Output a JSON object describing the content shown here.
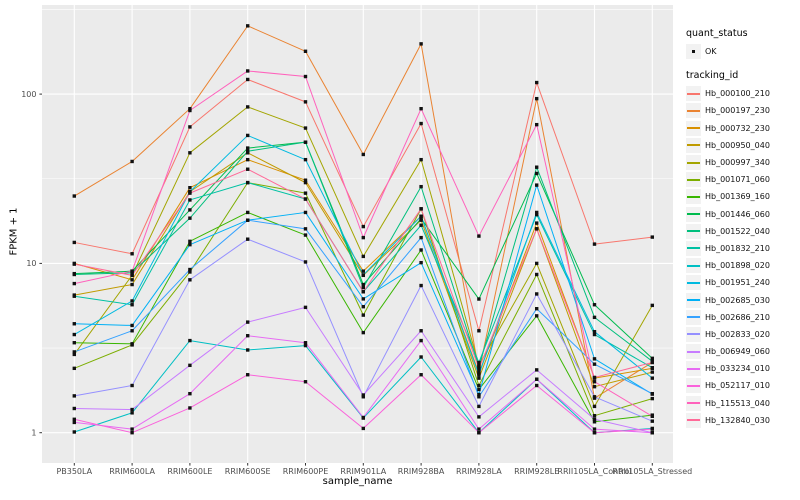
{
  "chart_data": {
    "type": "line",
    "title": "",
    "xlabel": "sample_name",
    "ylabel": "FPKM + 1",
    "y_scale": "log10",
    "ylim": [
      1,
      320
    ],
    "y_ticks": [
      1,
      10,
      100
    ],
    "grid": "white major and minor gridlines on gray panel",
    "legend_position": "right",
    "point_marker": "small black square (quant_status OK)",
    "quant_status": {
      "title": "quant_status",
      "items": [
        "OK"
      ]
    },
    "legend_title": "tracking_id",
    "x_categories": [
      "PB350LA",
      "RRIM600LA",
      "RRIM600LE",
      "RRIM600SE",
      "RRIM600PE",
      "RRIM901LA",
      "RRIM928BA",
      "RRIM928LA",
      "RRIM928LE",
      "RRII105LA_Control",
      "RRII105LA_Stressed"
    ],
    "series": [
      {
        "name": "Hb_000100_210",
        "color": "#F8766D",
        "values": [
          13.3,
          11.4,
          64,
          122,
          90,
          16.5,
          67,
          4.0,
          117,
          13,
          14.3
        ]
      },
      {
        "name": "Hb_000197_230",
        "color": "#EA8331",
        "values": [
          25,
          40,
          82,
          253,
          179,
          44,
          198,
          2.3,
          94,
          1.6,
          2.6
        ]
      },
      {
        "name": "Hb_000732_230",
        "color": "#D89000",
        "values": [
          10,
          8.0,
          28,
          41,
          31,
          9.0,
          19,
          2.25,
          17.3,
          2.1,
          2.4
        ]
      },
      {
        "name": "Hb_000950_040",
        "color": "#C09B00",
        "values": [
          6.5,
          7.5,
          26.5,
          45,
          30,
          8.5,
          18,
          2.1,
          16,
          1.87,
          2.28
        ]
      },
      {
        "name": "Hb_000997_340",
        "color": "#A3A500",
        "values": [
          2.9,
          8.5,
          45,
          84,
          63,
          11,
          41,
          2.5,
          10,
          1.43,
          5.65
        ]
      },
      {
        "name": "Hb_001071_060",
        "color": "#7CAE00",
        "values": [
          2.4,
          3.3,
          8.9,
          30,
          26,
          4.95,
          21,
          1.9,
          8.6,
          1.26,
          1.59
        ]
      },
      {
        "name": "Hb_001369_160",
        "color": "#39B600",
        "values": [
          3.4,
          3.35,
          13.5,
          20,
          14.7,
          3.9,
          12,
          1.8,
          4.9,
          1.16,
          1.27
        ]
      },
      {
        "name": "Hb_001446_060",
        "color": "#00BB4E",
        "values": [
          8.7,
          9.0,
          20.7,
          48,
          52,
          7.5,
          18.4,
          6.16,
          34,
          5.7,
          2.75
        ]
      },
      {
        "name": "Hb_001522_040",
        "color": "#00BF7D",
        "values": [
          8.6,
          8.8,
          18.5,
          46,
          52,
          7.2,
          28.4,
          2.45,
          37,
          4.8,
          2.64
        ]
      },
      {
        "name": "Hb_001832_210",
        "color": "#00C1A3",
        "values": [
          6.4,
          5.7,
          23.7,
          30,
          24,
          6.8,
          16.8,
          2.6,
          19.4,
          3.8,
          2.42
        ]
      },
      {
        "name": "Hb_001898_020",
        "color": "#00BFC4",
        "values": [
          1.01,
          1.31,
          3.5,
          3.08,
          3.27,
          1.22,
          2.8,
          1.0,
          2.07,
          1.0,
          1.06
        ]
      },
      {
        "name": "Hb_001951_240",
        "color": "#00BAE0",
        "values": [
          3.8,
          6.0,
          26.5,
          57,
          41,
          8.55,
          19,
          2.2,
          20,
          3.95,
          2.1
        ]
      },
      {
        "name": "Hb_002685_030",
        "color": "#00B0F6",
        "values": [
          4.4,
          4.3,
          12.9,
          18,
          20,
          6.17,
          10.1,
          1.68,
          29,
          2.73,
          1.69
        ]
      },
      {
        "name": "Hb_002686_210",
        "color": "#35A2FF",
        "values": [
          3.0,
          4.0,
          9.2,
          18,
          16,
          5.55,
          14.2,
          1.63,
          5.4,
          2.54,
          1.7
        ]
      },
      {
        "name": "Hb_002833_020",
        "color": "#9590FF",
        "values": [
          1.65,
          1.9,
          8.0,
          13.9,
          10.2,
          1.63,
          7.4,
          1.43,
          6.6,
          1.63,
          1.17
        ]
      },
      {
        "name": "Hb_006949_060",
        "color": "#C77CFF",
        "values": [
          1.39,
          1.37,
          2.5,
          4.5,
          5.5,
          1.67,
          4.0,
          1.24,
          2.35,
          1.2,
          1.0
        ]
      },
      {
        "name": "Hb_033234_010",
        "color": "#E76BF3",
        "values": [
          1.15,
          1.05,
          1.7,
          3.74,
          3.4,
          1.23,
          3.5,
          1.05,
          2.07,
          1.05,
          1.0
        ]
      },
      {
        "name": "Hb_052117_010",
        "color": "#FA62DB",
        "values": [
          1.2,
          1.0,
          1.4,
          2.2,
          2.0,
          1.06,
          2.2,
          1.0,
          1.9,
          1.0,
          1.05
        ]
      },
      {
        "name": "Hb_115513_040",
        "color": "#FF62BC",
        "values": [
          7.6,
          9.0,
          80,
          137,
          127,
          14.2,
          82,
          14.5,
          66,
          2.0,
          1.25
        ]
      },
      {
        "name": "Hb_132840_030",
        "color": "#FF6A98",
        "values": [
          9.9,
          8.5,
          26,
          36,
          24,
          6.8,
          21,
          2.4,
          16,
          2.12,
          2.6
        ]
      }
    ],
    "panel_color": "#EBEBEB",
    "gridline_color": "#FFFFFF",
    "axis_text_color": "#4D4D4D"
  }
}
